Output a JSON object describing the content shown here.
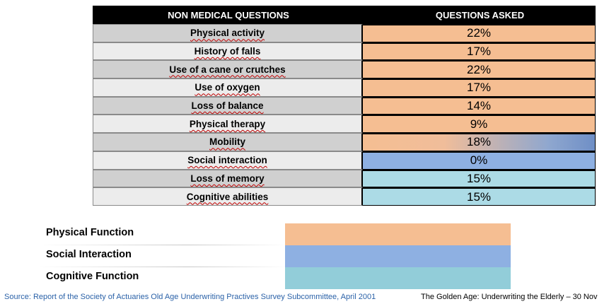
{
  "table": {
    "header_question": "NON MEDICAL QUESTIONS",
    "header_asked": "QUESTIONS ASKED",
    "rows": [
      {
        "question": "Physical activity",
        "pct": "22%",
        "bg": "#d0d0d0",
        "fill": "#f5be92"
      },
      {
        "question": "History of falls",
        "pct": "17%",
        "bg": "#ececec",
        "fill": "#f5be92"
      },
      {
        "question": "Use of a cane or crutches",
        "pct": "22%",
        "bg": "#d0d0d0",
        "fill": "#f5be92"
      },
      {
        "question": "Use of oxygen",
        "pct": "17%",
        "bg": "#ececec",
        "fill": "#f5be92"
      },
      {
        "question": "Loss of balance",
        "pct": "14%",
        "bg": "#d0d0d0",
        "fill": "#f5be92"
      },
      {
        "question": "Physical therapy",
        "pct": "9%",
        "bg": "#ececec",
        "fill": "#f5be92"
      },
      {
        "question": "Mobility",
        "pct": "18%",
        "bg": "#d0d0d0",
        "fill": "linear-gradient(to right, #f5be92 0%, #f0bd9a 35%, #8fa7cf 80%, #6f8fc6 100%)"
      },
      {
        "question": "Social interaction",
        "pct": "0%",
        "bg": "#ececec",
        "fill": "#8eb0e2"
      },
      {
        "question": "Loss of memory",
        "pct": "15%",
        "bg": "#d0d0d0",
        "fill": "#acdbe6"
      },
      {
        "question": "Cognitive abilities",
        "pct": "15%",
        "bg": "#ececec",
        "fill": "#acdbe6"
      }
    ]
  },
  "legend": [
    {
      "label": "Physical Function",
      "color": "#f5be92"
    },
    {
      "label": "Social Interaction",
      "color": "#8eb0e2"
    },
    {
      "label": "Cognitive Function",
      "color": "#92cdd9"
    }
  ],
  "footer": {
    "source": "Source: Report of the Society of Actuaries Old Age Underwriting Practives Survey Subcommittee, April 2001",
    "slide_title": "The Golden Age:  Underwriting the Elderly – 30 Nov"
  }
}
